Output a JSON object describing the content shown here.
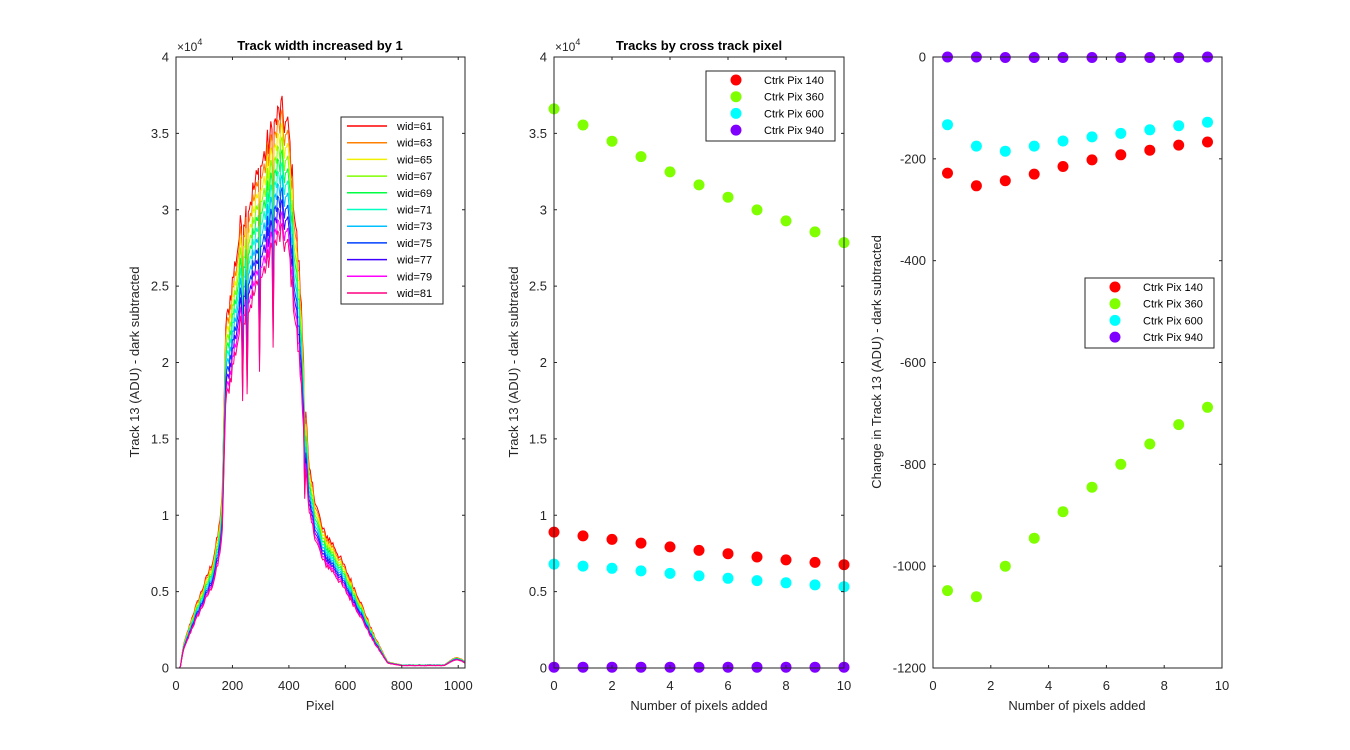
{
  "chart_data": [
    {
      "type": "line",
      "title": "Track width increased by 1",
      "xlabel": "Pixel",
      "ylabel": "Track 13 (ADU) - dark subtracted",
      "xlim": [
        0,
        1024
      ],
      "ylim": [
        0,
        40000
      ],
      "xticks": [
        0,
        200,
        400,
        600,
        800,
        1000
      ],
      "yticks": [
        0,
        0.5,
        1,
        1.5,
        2,
        2.5,
        3,
        3.5,
        4
      ],
      "y_exponent": "4",
      "y_exponent_prefix": "×10",
      "legend_position": "top-right",
      "profile_knots": {
        "x": [
          0,
          15,
          25,
          60,
          100,
          130,
          150,
          165,
          175,
          190,
          230,
          270,
          330,
          370,
          400,
          420,
          440,
          470,
          500,
          520,
          560,
          600,
          650,
          700,
          750,
          800,
          950,
          990,
          1010,
          1024
        ],
        "y": [
          0,
          0,
          1400,
          3500,
          5500,
          7000,
          8800,
          11500,
          22000,
          24000,
          29000,
          31000,
          34500,
          36500,
          35000,
          30000,
          25000,
          13000,
          10500,
          9000,
          8000,
          6500,
          4500,
          2200,
          400,
          200,
          200,
          700,
          600,
          400
        ]
      },
      "series": [
        {
          "name": "wid=61",
          "color": "#ff0000",
          "scale": 1.0
        },
        {
          "name": "wid=63",
          "color": "#ff8000",
          "scale": 0.976
        },
        {
          "name": "wid=65",
          "color": "#f0f000",
          "scale": 0.952
        },
        {
          "name": "wid=67",
          "color": "#80ff00",
          "scale": 0.929
        },
        {
          "name": "wid=69",
          "color": "#00ff40",
          "scale": 0.906
        },
        {
          "name": "wid=71",
          "color": "#00ffc0",
          "scale": 0.884
        },
        {
          "name": "wid=73",
          "color": "#00c0ff",
          "scale": 0.862
        },
        {
          "name": "wid=75",
          "color": "#0040ff",
          "scale": 0.84
        },
        {
          "name": "wid=77",
          "color": "#4000ff",
          "scale": 0.819
        },
        {
          "name": "wid=79",
          "color": "#ff00ff",
          "scale": 0.798
        },
        {
          "name": "wid=81",
          "color": "#ff0080",
          "scale": 0.778
        }
      ]
    },
    {
      "type": "scatter",
      "title": "Tracks by cross track pixel",
      "xlabel": "Number of pixels added",
      "ylabel": "Track 13 (ADU) - dark subtracted",
      "xlim": [
        0,
        10
      ],
      "ylim": [
        0,
        40000
      ],
      "xticks": [
        0,
        2,
        4,
        6,
        8,
        10
      ],
      "yticks": [
        0,
        0.5,
        1,
        1.5,
        2,
        2.5,
        3,
        3.5,
        4
      ],
      "y_exponent": "4",
      "y_exponent_prefix": "×10",
      "legend_position": "top-right",
      "x": [
        0,
        1,
        2,
        3,
        4,
        5,
        6,
        7,
        8,
        9,
        10
      ],
      "series": [
        {
          "name": "Ctrk Pix 140",
          "color": "#ff0000",
          "values": [
            8900,
            8650,
            8420,
            8180,
            7930,
            7700,
            7480,
            7270,
            7080,
            6910,
            6760
          ]
        },
        {
          "name": "Ctrk Pix 360",
          "color": "#80ff00",
          "values": [
            36600,
            35550,
            34490,
            33480,
            32480,
            31630,
            30820,
            29990,
            29270,
            28550,
            27850
          ]
        },
        {
          "name": "Ctrk Pix 600",
          "color": "#00ffff",
          "values": [
            6800,
            6670,
            6530,
            6360,
            6190,
            6030,
            5870,
            5720,
            5580,
            5440,
            5320
          ]
        },
        {
          "name": "Ctrk Pix 940",
          "color": "#8000ff",
          "values": [
            50,
            50,
            50,
            50,
            50,
            50,
            50,
            50,
            50,
            50,
            50
          ]
        }
      ]
    },
    {
      "type": "scatter",
      "title": "",
      "xlabel": "Number of pixels added",
      "ylabel": "Change in Track 13 (ADU) - dark subtracted",
      "xlim": [
        0,
        10
      ],
      "ylim": [
        -1200,
        0
      ],
      "xticks": [
        0,
        2,
        4,
        6,
        8,
        10
      ],
      "yticks": [
        -1200,
        -1000,
        -800,
        -600,
        -400,
        -200,
        0
      ],
      "legend_position": "middle-right",
      "x": [
        0.5,
        1.5,
        2.5,
        3.5,
        4.5,
        5.5,
        6.5,
        7.5,
        8.5,
        9.5
      ],
      "series": [
        {
          "name": "Ctrk Pix 140",
          "color": "#ff0000",
          "values": [
            -228,
            -253,
            -243,
            -230,
            -215,
            -202,
            -192,
            -183,
            -173,
            -167
          ]
        },
        {
          "name": "Ctrk Pix 360",
          "color": "#80ff00",
          "values": [
            -1048,
            -1060,
            -1000,
            -945,
            -893,
            -845,
            -800,
            -760,
            -722,
            -688
          ]
        },
        {
          "name": "Ctrk Pix 600",
          "color": "#00ffff",
          "values": [
            -133,
            -175,
            -185,
            -175,
            -165,
            -157,
            -150,
            -143,
            -135,
            -128
          ]
        },
        {
          "name": "Ctrk Pix 940",
          "color": "#8000ff",
          "values": [
            0,
            0,
            -1,
            -1,
            -1,
            -1,
            -1,
            -1,
            -1,
            0
          ]
        }
      ]
    }
  ]
}
